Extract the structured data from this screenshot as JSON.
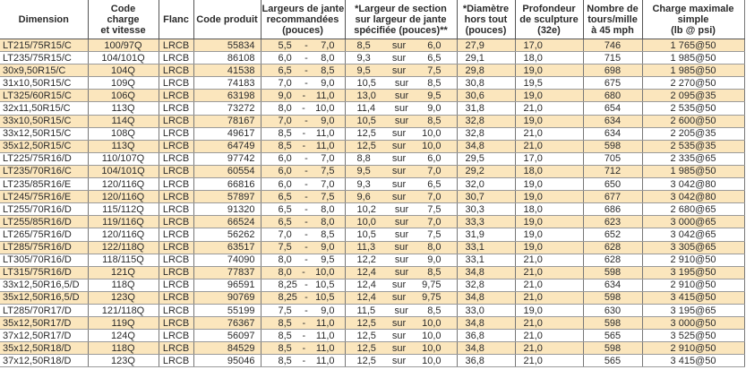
{
  "headers": [
    "Dimension",
    "Code\ncharge\net vitesse",
    "Flanc",
    "Code produit",
    "Largeurs de jante\nrecommandées\n(pouces)",
    "*Largeur de section\nsur largeur de jante\nspécifiée (pouces)**",
    "*Diamètre\nhors tout\n(pouces)",
    "Profondeur\nde sculpture\n(32e)",
    "Nombre de\ntours/mille\nà 45 mph",
    "Charge maximale\nsimple\n(lb @ psi)"
  ],
  "range_separator": "-",
  "section_separator": "sur",
  "rows": [
    {
      "dim": "LT215/75R15/C",
      "code": "100/97Q",
      "flanc": "LRCB",
      "prod": "55834",
      "rim_min": "5,5",
      "rim_max": "7,0",
      "sec": "8,5",
      "sec_rim": "6,0",
      "diam": "27,9",
      "depth": "17,0",
      "rev": "746",
      "load": "1 765@50"
    },
    {
      "dim": "LT235/75R15/C",
      "code": "104/101Q",
      "flanc": "LRCB",
      "prod": "86108",
      "rim_min": "6,0",
      "rim_max": "8,0",
      "sec": "9,3",
      "sec_rim": "6,5",
      "diam": "29,1",
      "depth": "18,0",
      "rev": "715",
      "load": "1 985@50"
    },
    {
      "dim": "30x9,50R15/C",
      "code": "104Q",
      "flanc": "LRCB",
      "prod": "41538",
      "rim_min": "6,5",
      "rim_max": "8,5",
      "sec": "9,5",
      "sec_rim": "7,5",
      "diam": "29,8",
      "depth": "19,0",
      "rev": "698",
      "load": "1 985@50"
    },
    {
      "dim": "31x10,50R15/C",
      "code": "109Q",
      "flanc": "LRCB",
      "prod": "74183",
      "rim_min": "7,0",
      "rim_max": "9,0",
      "sec": "10,5",
      "sec_rim": "8,5",
      "diam": "30,8",
      "depth": "19,5",
      "rev": "675",
      "load": "2 270@50"
    },
    {
      "dim": "LT325/60R15/C",
      "code": "106Q",
      "flanc": "LRCB",
      "prod": "63198",
      "rim_min": "9,0",
      "rim_max": "11,0",
      "sec": "13,0",
      "sec_rim": "9,5",
      "diam": "30,6",
      "depth": "19,0",
      "rev": "680",
      "load": "2 095@35"
    },
    {
      "dim": "32x11,50R15/C",
      "code": "113Q",
      "flanc": "LRCB",
      "prod": "73272",
      "rim_min": "8,0",
      "rim_max": "10,0",
      "sec": "11,4",
      "sec_rim": "9,0",
      "diam": "31,8",
      "depth": "21,0",
      "rev": "654",
      "load": "2 535@50"
    },
    {
      "dim": "33x10,50R15/C",
      "code": "114Q",
      "flanc": "LRCB",
      "prod": "78167",
      "rim_min": "7,0",
      "rim_max": "9,0",
      "sec": "10,5",
      "sec_rim": "8,5",
      "diam": "32,8",
      "depth": "19,0",
      "rev": "634",
      "load": "2 600@50"
    },
    {
      "dim": "33x12,50R15/C",
      "code": "108Q",
      "flanc": "LRCB",
      "prod": "49617",
      "rim_min": "8,5",
      "rim_max": "11,0",
      "sec": "12,5",
      "sec_rim": "10,0",
      "diam": "32,8",
      "depth": "21,0",
      "rev": "634",
      "load": "2 205@35"
    },
    {
      "dim": "35x12,50R15/C",
      "code": "113Q",
      "flanc": "LRCB",
      "prod": "64749",
      "rim_min": "8,5",
      "rim_max": "11,0",
      "sec": "12,5",
      "sec_rim": "10,0",
      "diam": "34,8",
      "depth": "21,0",
      "rev": "598",
      "load": "2 535@35"
    },
    {
      "dim": "LT225/75R16/D",
      "code": "110/107Q",
      "flanc": "LRCB",
      "prod": "97742",
      "rim_min": "6,0",
      "rim_max": "7,0",
      "sec": "8,8",
      "sec_rim": "6,0",
      "diam": "29,5",
      "depth": "17,0",
      "rev": "705",
      "load": "2 335@65"
    },
    {
      "dim": "LT235/70R16/C",
      "code": "104/101Q",
      "flanc": "LRCB",
      "prod": "60554",
      "rim_min": "6,0",
      "rim_max": "7,5",
      "sec": "9,5",
      "sec_rim": "7,0",
      "diam": "29,2",
      "depth": "18,0",
      "rev": "712",
      "load": "1 985@50"
    },
    {
      "dim": "LT235/85R16/E",
      "code": "120/116Q",
      "flanc": "LRCB",
      "prod": "66816",
      "rim_min": "6,0",
      "rim_max": "7,0",
      "sec": "9,3",
      "sec_rim": "6,5",
      "diam": "32,0",
      "depth": "19,0",
      "rev": "650",
      "load": "3 042@80"
    },
    {
      "dim": "LT245/75R16/E",
      "code": "120/116Q",
      "flanc": "LRCB",
      "prod": "57897",
      "rim_min": "6,5",
      "rim_max": "7,5",
      "sec": "9,6",
      "sec_rim": "7,0",
      "diam": "30,7",
      "depth": "19,0",
      "rev": "677",
      "load": "3 042@80"
    },
    {
      "dim": "LT255/70R16/D",
      "code": "115/112Q",
      "flanc": "LRCB",
      "prod": "91320",
      "rim_min": "6,5",
      "rim_max": "8,0",
      "sec": "10,2",
      "sec_rim": "7,5",
      "diam": "30,3",
      "depth": "18,0",
      "rev": "686",
      "load": "2 680@65"
    },
    {
      "dim": "LT255/85R16/D",
      "code": "119/116Q",
      "flanc": "LRCB",
      "prod": "66524",
      "rim_min": "6,5",
      "rim_max": "8,0",
      "sec": "10,0",
      "sec_rim": "7,0",
      "diam": "33,3",
      "depth": "19,0",
      "rev": "623",
      "load": "3 000@65"
    },
    {
      "dim": "LT265/75R16/D",
      "code": "120/116Q",
      "flanc": "LRCB",
      "prod": "56262",
      "rim_min": "7,0",
      "rim_max": "8,5",
      "sec": "10,5",
      "sec_rim": "7,5",
      "diam": "31,9",
      "depth": "19,0",
      "rev": "652",
      "load": "3 042@65"
    },
    {
      "dim": "LT285/75R16/D",
      "code": "122/118Q",
      "flanc": "LRCB",
      "prod": "63517",
      "rim_min": "7,5",
      "rim_max": "9,0",
      "sec": "11,3",
      "sec_rim": "8,0",
      "diam": "33,1",
      "depth": "19,0",
      "rev": "628",
      "load": "3 305@65"
    },
    {
      "dim": "LT305/70R16/D",
      "code": "118/115Q",
      "flanc": "LRCB",
      "prod": "74090",
      "rim_min": "8,0",
      "rim_max": "9,5",
      "sec": "12,2",
      "sec_rim": "9,0",
      "diam": "33,1",
      "depth": "21,0",
      "rev": "628",
      "load": "2 910@50"
    },
    {
      "dim": "LT315/75R16/D",
      "code": "121Q",
      "flanc": "LRCB",
      "prod": "77837",
      "rim_min": "8,0",
      "rim_max": "10,0",
      "sec": "12,4",
      "sec_rim": "8,5",
      "diam": "34,8",
      "depth": "21,0",
      "rev": "598",
      "load": "3 195@50"
    },
    {
      "dim": "33x12,50R16,5/D",
      "code": "118Q",
      "flanc": "LRCB",
      "prod": "96591",
      "rim_min": "8,25",
      "rim_max": "10,5",
      "sec": "12,4",
      "sec_rim": "9,75",
      "diam": "32,8",
      "depth": "21,0",
      "rev": "634",
      "load": "2 910@50"
    },
    {
      "dim": "35x12,50R16,5/D",
      "code": "123Q",
      "flanc": "LRCB",
      "prod": "90769",
      "rim_min": "8,25",
      "rim_max": "10,5",
      "sec": "12,4",
      "sec_rim": "9,75",
      "diam": "34,8",
      "depth": "21,0",
      "rev": "598",
      "load": "3 415@50"
    },
    {
      "dim": "LT285/70R17/D",
      "code": "121/118Q",
      "flanc": "LRCB",
      "prod": "55199",
      "rim_min": "7,5",
      "rim_max": "9,0",
      "sec": "11,5",
      "sec_rim": "8,5",
      "diam": "33,0",
      "depth": "19,0",
      "rev": "630",
      "load": "3 195@65"
    },
    {
      "dim": "35x12,50R17/D",
      "code": "119Q",
      "flanc": "LRCB",
      "prod": "76367",
      "rim_min": "8,5",
      "rim_max": "11,0",
      "sec": "12,5",
      "sec_rim": "10,0",
      "diam": "34,8",
      "depth": "21,0",
      "rev": "598",
      "load": "3 000@50"
    },
    {
      "dim": "37x12,50R17/D",
      "code": "124Q",
      "flanc": "LRCB",
      "prod": "56097",
      "rim_min": "8,5",
      "rim_max": "11,0",
      "sec": "12,5",
      "sec_rim": "10,0",
      "diam": "36,8",
      "depth": "21,0",
      "rev": "565",
      "load": "3 525@50"
    },
    {
      "dim": "35x12,50R18/D",
      "code": "118Q",
      "flanc": "LRCB",
      "prod": "84529",
      "rim_min": "8,5",
      "rim_max": "11,0",
      "sec": "12,5",
      "sec_rim": "10,0",
      "diam": "34,8",
      "depth": "21,0",
      "rev": "598",
      "load": "2 910@50"
    },
    {
      "dim": "37x12,50R18/D",
      "code": "123Q",
      "flanc": "LRCB",
      "prod": "95046",
      "rim_min": "8,5",
      "rim_max": "11,0",
      "sec": "12,5",
      "sec_rim": "10,0",
      "diam": "36,8",
      "depth": "21,0",
      "rev": "565",
      "load": "3 415@50"
    }
  ]
}
